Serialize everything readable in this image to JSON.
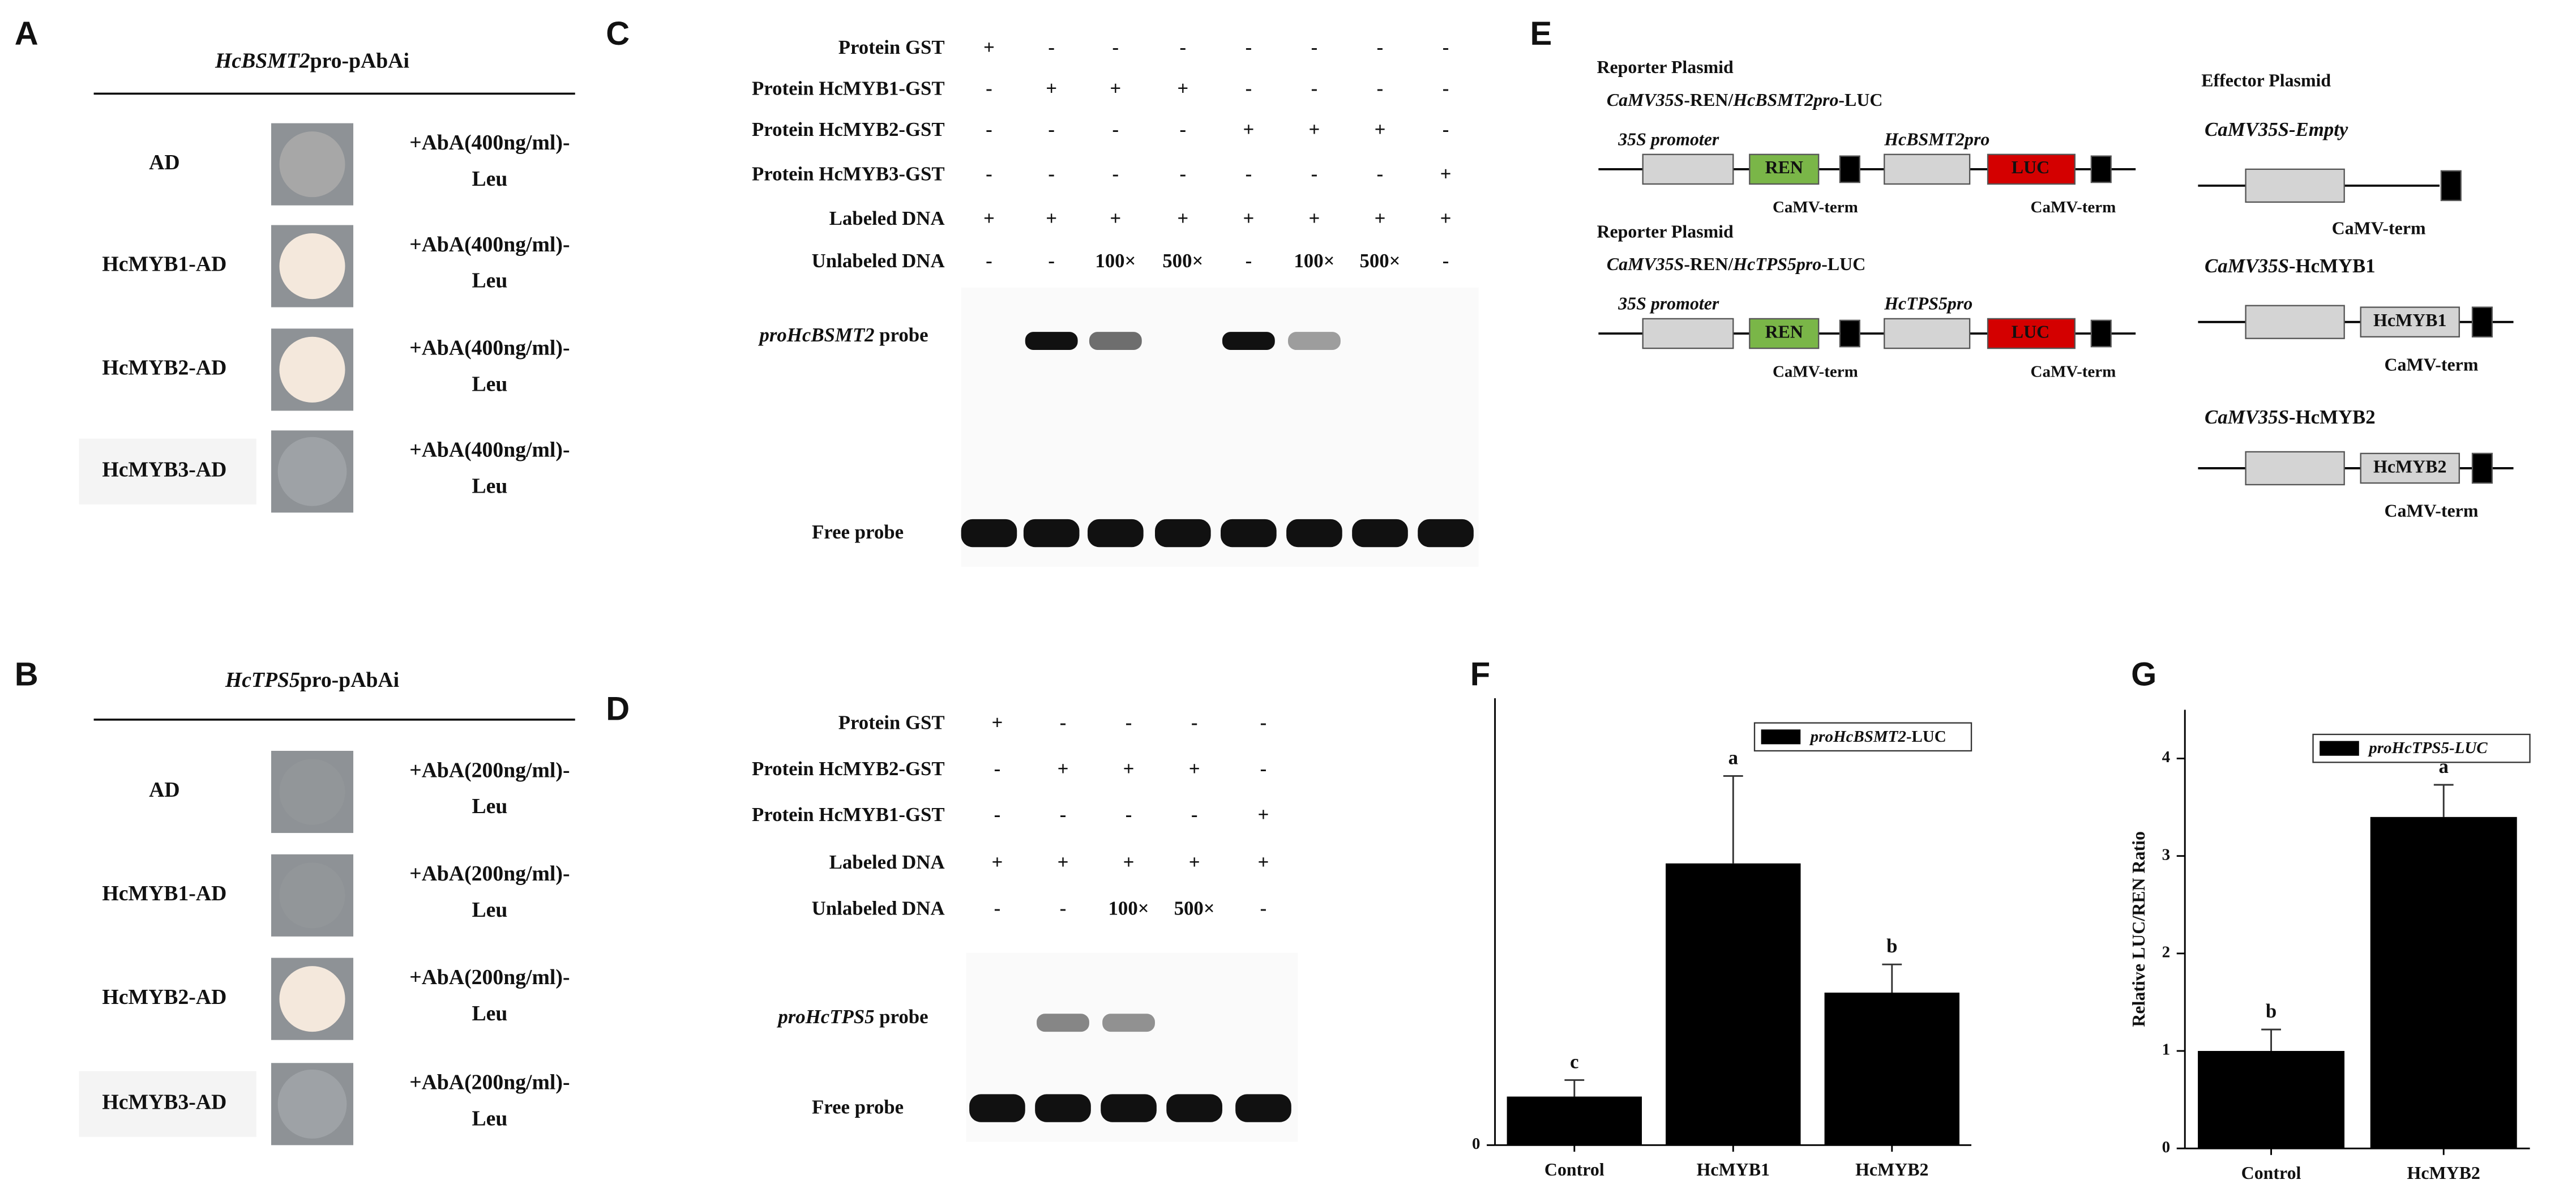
{
  "panels": {
    "A": {
      "label": "A",
      "title": [
        "HcBSMT2",
        "pro-pAbAi"
      ],
      "rows": [
        {
          "strain": "AD",
          "medium": [
            "+AbA(400ng/ml)-",
            "Leu"
          ]
        },
        {
          "strain": "HcMYB1-AD",
          "medium": [
            "+AbA(400ng/ml)-",
            "Leu"
          ]
        },
        {
          "strain": "HcMYB2-AD",
          "medium": [
            "+AbA(400ng/ml)-",
            "Leu"
          ]
        },
        {
          "strain": "HcMYB3-AD",
          "medium": [
            "+AbA(400ng/ml)-",
            "Leu"
          ]
        }
      ]
    },
    "B": {
      "label": "B",
      "title": [
        "HcTPS5",
        "pro-pAbAi"
      ],
      "rows": [
        {
          "strain": "AD",
          "medium": [
            "+AbA(200ng/ml)-",
            "Leu"
          ]
        },
        {
          "strain": "HcMYB1-AD",
          "medium": [
            "+AbA(200ng/ml)-",
            "Leu"
          ]
        },
        {
          "strain": "HcMYB2-AD",
          "medium": [
            "+AbA(200ng/ml)-",
            "Leu"
          ]
        },
        {
          "strain": "HcMYB3-AD",
          "medium": [
            "+AbA(200ng/ml)-",
            "Leu"
          ]
        }
      ]
    },
    "C": {
      "label": "C",
      "rows": [
        {
          "name": "Protein GST",
          "lanes": [
            "+",
            "-",
            "-",
            "-",
            "-",
            "-",
            "-",
            "-"
          ]
        },
        {
          "name": "Protein HcMYB1-GST",
          "lanes": [
            "-",
            "+",
            "+",
            "+",
            "-",
            "-",
            "-",
            "-"
          ]
        },
        {
          "name": "Protein HcMYB2-GST",
          "lanes": [
            "-",
            "-",
            "-",
            "-",
            "+",
            "+",
            "+",
            "-"
          ]
        },
        {
          "name": "Protein HcMYB3-GST",
          "lanes": [
            "-",
            "-",
            "-",
            "-",
            "-",
            "-",
            "-",
            "+"
          ]
        },
        {
          "name": "Labeled DNA",
          "lanes": [
            "+",
            "+",
            "+",
            "+",
            "+",
            "+",
            "+",
            "+"
          ]
        },
        {
          "name": "Unlabeled DNA",
          "lanes": [
            "-",
            "-",
            "100×",
            "500×",
            "-",
            "100×",
            "500×",
            "-"
          ]
        }
      ],
      "probe": [
        "proHcBSMT2",
        " probe"
      ],
      "free_probe": "Free probe"
    },
    "D": {
      "label": "D",
      "rows": [
        {
          "name": "Protein GST",
          "lanes": [
            "+",
            "-",
            "-",
            "-",
            "-"
          ]
        },
        {
          "name": "Protein HcMYB2-GST",
          "lanes": [
            "-",
            "+",
            "+",
            "+",
            "-"
          ]
        },
        {
          "name": "Protein HcMYB1-GST",
          "lanes": [
            "-",
            "-",
            "-",
            "-",
            "+"
          ]
        },
        {
          "name": "Labeled DNA",
          "lanes": [
            "+",
            "+",
            "+",
            "+",
            "+"
          ]
        },
        {
          "name": "Unlabeled DNA",
          "lanes": [
            "-",
            "-",
            "100×",
            "500×",
            "-"
          ]
        }
      ],
      "probe": [
        "proHcTPS5",
        " probe"
      ],
      "free_probe": "Free probe"
    },
    "E": {
      "label": "E",
      "reporters": [
        {
          "heading": "Reporter Plasmid",
          "construct": [
            "CaMV35S",
            "-REN/",
            "HcBSMT2pro",
            "-LUC"
          ],
          "promoter_label": [
            "35S promoter"
          ],
          "promoter": [
            "HcBSMT2pro"
          ],
          "ren": "REN",
          "luc": "LUC",
          "terminators": [
            "CaMV-term",
            "CaMV-term"
          ]
        },
        {
          "heading": "Reporter Plasmid",
          "construct": [
            "CaMV35S",
            "-REN/",
            "HcTPS5pro",
            "-LUC"
          ],
          "promoter_label": [
            "35S promoter"
          ],
          "promoter": [
            "HcTPS5pro"
          ],
          "ren": "REN",
          "luc": "LUC",
          "terminators": [
            "CaMV-term",
            "CaMV-term"
          ]
        }
      ],
      "effector_heading": "Effector Plasmid",
      "effectors": [
        {
          "construct": [
            "CaMV35S-Empty"
          ],
          "terminator": "CaMV-term"
        },
        {
          "construct": [
            "CaMV35S",
            "-HcMYB1"
          ],
          "gene": "HcMYB1",
          "terminator": "CaMV-term"
        },
        {
          "construct": [
            "CaMV35S",
            "-HcMYB2"
          ],
          "gene": "HcMYB2",
          "terminator": "CaMV-term"
        }
      ]
    },
    "F": {
      "label": "F"
    },
    "G": {
      "label": "G"
    }
  },
  "chart_data": [
    {
      "type": "bar",
      "legend": [
        "proHcBSMT2",
        "-LUC"
      ],
      "categories": [
        "Control",
        "HcMYB1",
        "HcMYB2"
      ],
      "values": [
        0.5,
        2.9,
        1.57
      ],
      "errors": [
        0.17,
        0.9,
        0.29
      ],
      "letters": [
        "c",
        "a",
        "b"
      ],
      "color": "#000000",
      "ylim": [
        0,
        4.6
      ],
      "yticks": [
        0
      ]
    },
    {
      "type": "bar",
      "y_label": "Relative LUC/REN Ratio",
      "legend": [
        "proHcTPS5-LUC"
      ],
      "categories": [
        "Control",
        "HcMYB2"
      ],
      "values": [
        1.0,
        3.4
      ],
      "errors": [
        0.22,
        0.33
      ],
      "letters": [
        "b",
        "a"
      ],
      "color": "#000000",
      "ylim": [
        0,
        4.5
      ],
      "yticks": [
        0,
        1,
        2,
        3,
        4
      ]
    }
  ]
}
